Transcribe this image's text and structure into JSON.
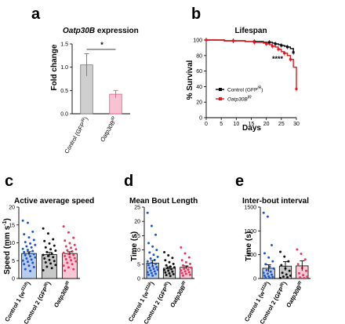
{
  "chart_data": [
    {
      "id": "a",
      "type": "bar",
      "panel_letter": "a",
      "title_italic": "Oatp30B",
      "title_rest": " expression",
      "ylabel": "Fold change",
      "ylim": [
        0.0,
        1.5
      ],
      "yticks": [
        "0.0",
        "0.5",
        "1.0",
        "1.5"
      ],
      "categories": [
        "Control (GFP",
        "Oatp30B"
      ],
      "category_sup": [
        "IR",
        "IR"
      ],
      "category_suffix": [
        ")",
        ""
      ],
      "values": [
        1.05,
        0.42
      ],
      "errors": [
        0.24,
        0.08
      ],
      "colors": [
        "#cfcfcf",
        "#f7c3d2"
      ],
      "edge_colors": [
        "#777777",
        "#e45b7f"
      ],
      "significance": "*"
    },
    {
      "id": "b",
      "type": "line",
      "panel_letter": "b",
      "title": "Lifespan",
      "xlabel": "Days",
      "ylabel": "% Survival",
      "xlim": [
        0,
        30
      ],
      "ylim": [
        0,
        100
      ],
      "xticks": [
        "0",
        "5",
        "10",
        "15",
        "20",
        "25",
        "30"
      ],
      "yticks": [
        "0",
        "20",
        "40",
        "60",
        "80",
        "100"
      ],
      "significance": "****",
      "series": [
        {
          "name": "Control (GFP",
          "name_sup": "IR",
          "name_suffix": ")",
          "color": "#000000",
          "x": [
            0,
            6,
            9,
            13,
            16,
            19,
            21,
            22,
            23,
            24,
            25,
            26,
            27,
            28,
            29
          ],
          "y": [
            100,
            99,
            99,
            98,
            98,
            97,
            97,
            96,
            95,
            94,
            93,
            92,
            91,
            89,
            84
          ]
        },
        {
          "name": "Oatp30B",
          "name_sup": "IR",
          "name_suffix": "",
          "color": "#e8141b",
          "x": [
            0,
            6,
            9,
            13,
            16,
            19,
            20,
            21,
            22,
            23,
            24,
            25,
            26,
            27,
            28,
            29,
            30
          ],
          "y": [
            100,
            99,
            99,
            98,
            97,
            96,
            95,
            94,
            92,
            91,
            88,
            85,
            83,
            80,
            75,
            65,
            37
          ]
        }
      ]
    },
    {
      "id": "c",
      "type": "bar",
      "panel_letter": "c",
      "title": "Active average speed",
      "ylabel": "Speed (mm s",
      "ylabel_sup": "-1",
      "ylabel_suffix": ")",
      "ylim": [
        0,
        20
      ],
      "yticks": [
        "0",
        "5",
        "10",
        "15",
        "20"
      ],
      "categories": [
        "Control 1 (w",
        "Control 2 (GFP",
        "Oatp30B"
      ],
      "category_sup": [
        "1118",
        "IR",
        "IR"
      ],
      "category_suffix": [
        ")",
        ")",
        ""
      ],
      "values": [
        7.0,
        6.7,
        7.0
      ],
      "errors": [
        0.5,
        0.6,
        0.5
      ],
      "colors": [
        "#b9cdee",
        "#c8c8c8",
        "#f9c9d6"
      ],
      "point_colors": [
        "#1f55cc",
        "#111111",
        "#e8365f"
      ],
      "points": [
        [
          16.2,
          15.6,
          13.1,
          12.4,
          11.5,
          10.8,
          10.2,
          9.8,
          9.4,
          9.0,
          8.7,
          8.3,
          8.0,
          7.7,
          7.4,
          7.1,
          6.8,
          6.5,
          6.2,
          5.9,
          5.6,
          5.3,
          5.0,
          4.7,
          4.4,
          4.0,
          3.6,
          3.2,
          2.6,
          2.1
        ],
        [
          14.0,
          12.6,
          11.0,
          10.5,
          9.8,
          9.2,
          8.7,
          8.2,
          7.8,
          7.4,
          7.0,
          6.6,
          6.3,
          6.0,
          5.6,
          5.2,
          4.9,
          4.5,
          4.2,
          3.8,
          3.3,
          2.9,
          2.3
        ],
        [
          14.6,
          12.9,
          11.4,
          10.6,
          9.9,
          9.4,
          9.0,
          8.6,
          8.2,
          7.9,
          7.6,
          7.2,
          6.9,
          6.6,
          6.3,
          6.0,
          5.7,
          5.4,
          5.1,
          4.8,
          4.4,
          4.0,
          3.6,
          3.1,
          2.6,
          2.2
        ]
      ]
    },
    {
      "id": "d",
      "type": "bar",
      "panel_letter": "d",
      "title": "Mean Bout Length",
      "ylabel": "Time (s)",
      "ylim": [
        0,
        25
      ],
      "yticks": [
        "0",
        "5",
        "10",
        "15",
        "20",
        "25"
      ],
      "categories": [
        "Control 1 (w",
        "Control 2 (GFP",
        "Oatp30B"
      ],
      "category_sup": [
        "1118",
        "IR",
        "IR"
      ],
      "category_suffix": [
        ")",
        ")",
        ""
      ],
      "values": [
        5.4,
        3.6,
        3.9
      ],
      "errors": [
        0.9,
        0.5,
        0.5
      ],
      "colors": [
        "#b9cdee",
        "#c8c8c8",
        "#f9c9d6"
      ],
      "point_colors": [
        "#1f55cc",
        "#111111",
        "#e8365f"
      ],
      "points": [
        [
          23.0,
          18.4,
          15.3,
          12.4,
          11.2,
          10.0,
          9.1,
          8.3,
          7.6,
          7.0,
          6.5,
          6.0,
          5.5,
          5.1,
          4.7,
          4.3,
          4.0,
          3.7,
          3.4,
          3.1,
          2.8,
          2.5,
          2.2,
          1.9,
          1.6,
          1.3,
          1.0
        ],
        [
          9.2,
          8.1,
          7.2,
          6.4,
          5.7,
          5.1,
          4.6,
          4.2,
          3.9,
          3.6,
          3.3,
          3.0,
          2.7,
          2.4,
          2.1,
          1.8,
          1.5,
          1.2,
          0.9
        ],
        [
          10.9,
          8.8,
          7.4,
          6.4,
          5.7,
          5.1,
          4.6,
          4.2,
          3.8,
          3.4,
          3.1,
          2.8,
          2.5,
          2.2,
          1.9,
          1.6,
          1.3,
          1.0
        ]
      ]
    },
    {
      "id": "e",
      "type": "bar",
      "panel_letter": "e",
      "title": "Inter-bout interval",
      "ylabel": "Time (s)",
      "ylim": [
        0,
        1500
      ],
      "yticks": [
        "0",
        "500",
        "1000",
        "1500"
      ],
      "categories": [
        "Control 1 (w",
        "Control 2 (GFP",
        "Oatp30B"
      ],
      "category_sup": [
        "1118",
        "IR",
        "IR"
      ],
      "category_suffix": [
        ")",
        ")",
        ""
      ],
      "values": [
        215,
        260,
        265
      ],
      "errors": [
        75,
        95,
        105
      ],
      "colors": [
        "#b9cdee",
        "#c8c8c8",
        "#f9c9d6"
      ],
      "point_colors": [
        "#1f55cc",
        "#111111",
        "#e8365f"
      ],
      "points": [
        [
          1380,
          1300,
          700,
          530,
          440,
          360,
          300,
          250,
          210,
          175,
          145,
          120,
          100,
          80,
          60,
          45,
          30,
          20,
          10
        ],
        [
          560,
          460,
          360,
          280,
          210,
          160,
          120,
          85,
          60,
          40,
          25,
          10
        ],
        [
          610,
          520,
          400,
          300,
          220,
          160,
          110,
          70,
          40,
          20,
          8
        ]
      ]
    }
  ]
}
